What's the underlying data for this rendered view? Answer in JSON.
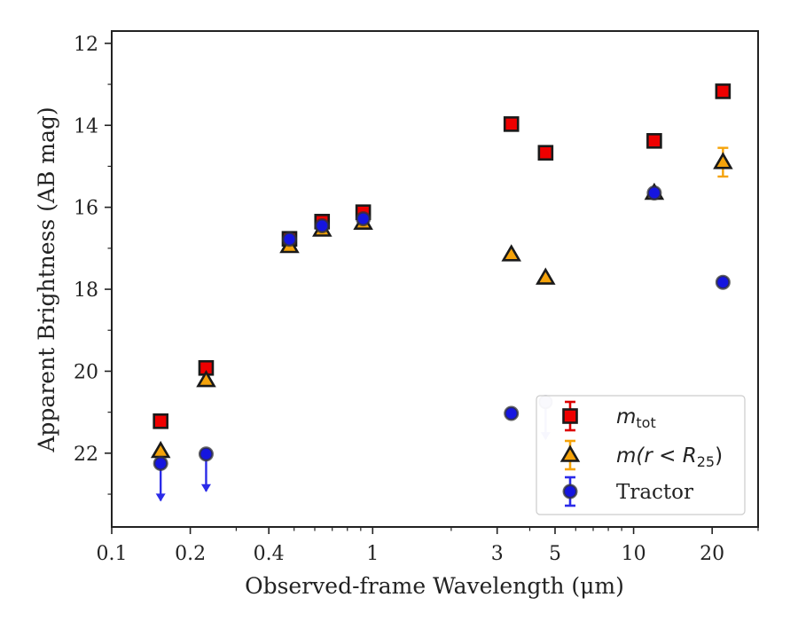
{
  "chart_data": {
    "type": "scatter",
    "xscale": "log",
    "yaxis_inverted": true,
    "xlim": [
      0.1,
      30
    ],
    "ylim": [
      23.8,
      11.7
    ],
    "xlabel": "Observed-frame Wavelength (μm)",
    "ylabel": "Apparent Brightness (AB mag)",
    "xticks": [
      {
        "value": 0.1,
        "label": "0.1"
      },
      {
        "value": 0.2,
        "label": "0.2"
      },
      {
        "value": 0.4,
        "label": "0.4"
      },
      {
        "value": 1,
        "label": "1"
      },
      {
        "value": 3,
        "label": "3"
      },
      {
        "value": 5,
        "label": "5"
      },
      {
        "value": 10,
        "label": "10"
      },
      {
        "value": 20,
        "label": "20"
      }
    ],
    "xminor_ticks": [
      0.3,
      0.5,
      0.6,
      0.7,
      0.8,
      0.9,
      2,
      4,
      6,
      7,
      8,
      9,
      30
    ],
    "yticks": [
      12,
      14,
      16,
      18,
      20,
      22
    ],
    "yminor_ticks": [
      13,
      15,
      17,
      19,
      21,
      23
    ],
    "legend": {
      "position": "lower-right"
    },
    "series": [
      {
        "name": "m_tot",
        "legend_label": {
          "base": "m",
          "sub": "tot"
        },
        "marker": "square",
        "face_color": "#ee0000",
        "edge_color": "#1a1a1a",
        "error_color": "#dd0000",
        "points": [
          {
            "x": 0.154,
            "y": 21.22
          },
          {
            "x": 0.23,
            "y": 19.92
          },
          {
            "x": 0.48,
            "y": 16.77
          },
          {
            "x": 0.64,
            "y": 16.35
          },
          {
            "x": 0.92,
            "y": 16.12
          },
          {
            "x": 3.4,
            "y": 13.97
          },
          {
            "x": 4.6,
            "y": 14.67
          },
          {
            "x": 12.0,
            "y": 14.38
          },
          {
            "x": 22.0,
            "y": 13.17
          }
        ]
      },
      {
        "name": "m(r < R_25)",
        "legend_label": {
          "base": "m(r < R",
          "sub": "25",
          "tail": ")"
        },
        "marker": "triangle",
        "face_color": "#f5a30a",
        "edge_color": "#1a1a1a",
        "error_color": "#f5a30a",
        "points": [
          {
            "x": 0.154,
            "y": 21.95
          },
          {
            "x": 0.23,
            "y": 20.22
          },
          {
            "x": 0.48,
            "y": 16.95
          },
          {
            "x": 0.64,
            "y": 16.55
          },
          {
            "x": 0.92,
            "y": 16.38
          },
          {
            "x": 3.4,
            "y": 17.15
          },
          {
            "x": 4.6,
            "y": 17.72
          },
          {
            "x": 12.0,
            "y": 15.65
          },
          {
            "x": 22.0,
            "y": 14.9,
            "err": 0.35
          }
        ]
      },
      {
        "name": "Tractor",
        "legend_label": {
          "text": "Tractor"
        },
        "marker": "circle",
        "face_color": "#1515e0",
        "edge_color": "#333333",
        "error_color": "#2b2be8",
        "points": [
          {
            "x": 0.154,
            "y": 22.25,
            "upper_limit": true
          },
          {
            "x": 0.23,
            "y": 22.02,
            "upper_limit": true
          },
          {
            "x": 0.48,
            "y": 16.78
          },
          {
            "x": 0.64,
            "y": 16.45
          },
          {
            "x": 0.92,
            "y": 16.28
          },
          {
            "x": 3.4,
            "y": 21.03
          },
          {
            "x": 4.6,
            "y": 20.75,
            "upper_limit": true
          },
          {
            "x": 12.0,
            "y": 15.65
          },
          {
            "x": 22.0,
            "y": 17.83
          }
        ]
      }
    ]
  }
}
